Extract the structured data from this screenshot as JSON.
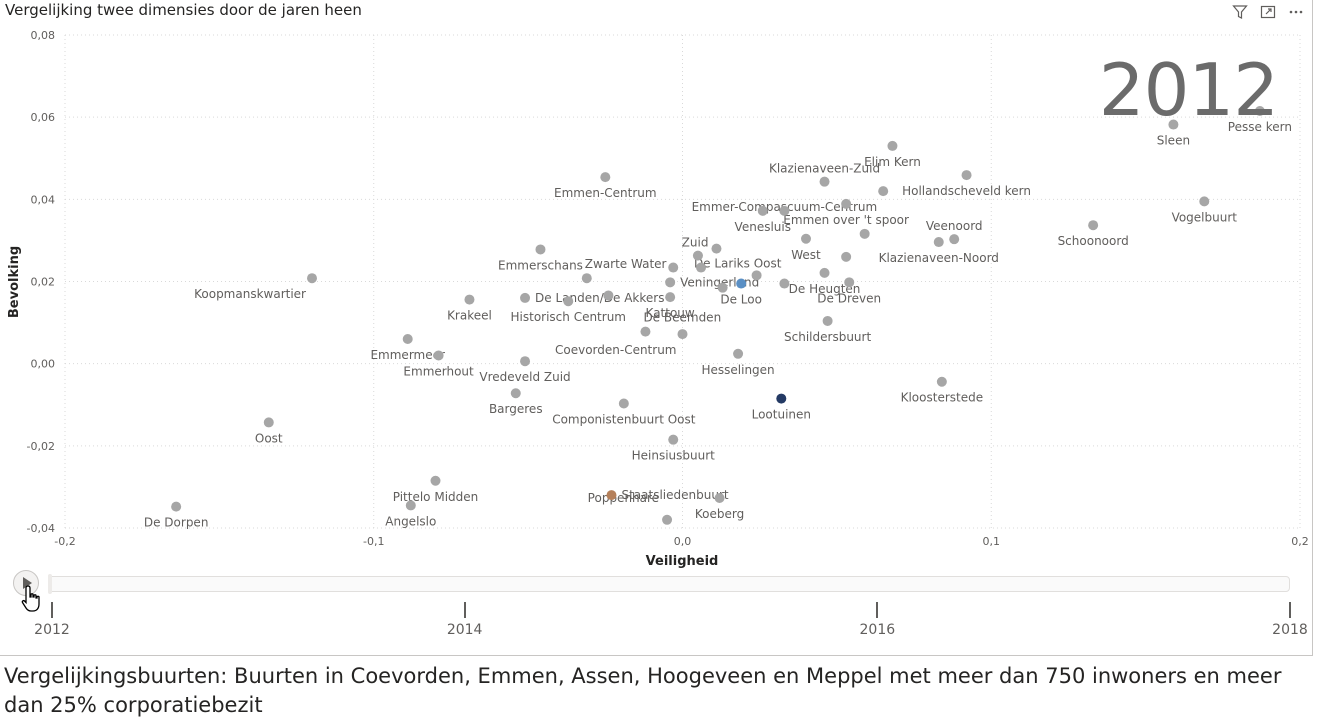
{
  "visual": {
    "title": "Vergelijking twee dimensies door de jaren heen",
    "header_icons": [
      "filter-icon",
      "focus-mode-icon",
      "more-options-icon"
    ],
    "big_year": "2012"
  },
  "chart_data": {
    "type": "scatter",
    "title": "Vergelijking twee dimensies door de jaren heen",
    "xlabel": "Veiligheid",
    "ylabel": "Bevolking",
    "xlim": [
      -0.2,
      0.2
    ],
    "ylim": [
      -0.04,
      0.08
    ],
    "x_ticks": [
      "-0,2",
      "-0,1",
      "0,0",
      "0,1",
      "0,2"
    ],
    "y_ticks": [
      "0,08",
      "0,06",
      "0,04",
      "0,02",
      "0,00",
      "-0,02",
      "-0,04"
    ],
    "x_tick_values": [
      -0.2,
      -0.1,
      0.0,
      0.1,
      0.2
    ],
    "y_tick_values": [
      0.08,
      0.06,
      0.04,
      0.02,
      0.0,
      -0.02,
      -0.04
    ],
    "grid": true,
    "colors": {
      "default": "#a6a6a6",
      "highlight_blue": "#5a8fc4",
      "highlight_navy": "#243a64",
      "highlight_orange": "#b5805a"
    },
    "points": [
      {
        "label": "Pesse kern",
        "x": 0.187,
        "y": 0.0615,
        "color": "default",
        "lpos": "below"
      },
      {
        "label": "Sleen",
        "x": 0.159,
        "y": 0.0582,
        "color": "default",
        "lpos": "below"
      },
      {
        "label": "Elim Kern",
        "x": 0.068,
        "y": 0.053,
        "color": "default",
        "lpos": "below"
      },
      {
        "label": "Hollandscheveld kern",
        "x": 0.092,
        "y": 0.0459,
        "color": "default",
        "lpos": "below"
      },
      {
        "label": "Klazienaveen-Zuid",
        "x": 0.046,
        "y": 0.0443,
        "color": "default",
        "lpos": "above"
      },
      {
        "label": "Emmer-Compascuum-Centrum",
        "x": 0.065,
        "y": 0.042,
        "color": "default",
        "lpos": "below-left"
      },
      {
        "label": "Emmen-Centrum",
        "x": -0.025,
        "y": 0.0454,
        "color": "default",
        "lpos": "below"
      },
      {
        "label": "Vogelbuurt",
        "x": 0.169,
        "y": 0.0395,
        "color": "default",
        "lpos": "below"
      },
      {
        "label": "Venesluis",
        "x": 0.026,
        "y": 0.0372,
        "color": "default",
        "lpos": "below"
      },
      {
        "label": "Emmen over 't spoor",
        "x": 0.053,
        "y": 0.0389,
        "color": "default",
        "lpos": "below"
      },
      {
        "label": "",
        "x": 0.033,
        "y": 0.0372,
        "color": "default",
        "lpos": "none"
      },
      {
        "label": "Schoonoord",
        "x": 0.133,
        "y": 0.0337,
        "color": "default",
        "lpos": "below"
      },
      {
        "label": "Veenoord",
        "x": 0.088,
        "y": 0.0303,
        "color": "default",
        "lpos": "above"
      },
      {
        "label": "Klazienaveen-Noord",
        "x": 0.083,
        "y": 0.0296,
        "color": "default",
        "lpos": "below"
      },
      {
        "label": "",
        "x": 0.059,
        "y": 0.0316,
        "color": "default",
        "lpos": "none"
      },
      {
        "label": "Zuid",
        "x": 0.011,
        "y": 0.028,
        "color": "default",
        "lpos": "left"
      },
      {
        "label": "West",
        "x": 0.04,
        "y": 0.0304,
        "color": "default",
        "lpos": "below"
      },
      {
        "label": "Emmerschans",
        "x": -0.046,
        "y": 0.0278,
        "color": "default",
        "lpos": "below"
      },
      {
        "label": "De Lariks Oost",
        "x": 0.005,
        "y": 0.0263,
        "color": "default",
        "lpos": "below-right"
      },
      {
        "label": "",
        "x": 0.053,
        "y": 0.026,
        "color": "default",
        "lpos": "none"
      },
      {
        "label": "Zwarte Water",
        "x": -0.031,
        "y": 0.0208,
        "color": "default",
        "lpos": "above-right"
      },
      {
        "label": "",
        "x": -0.003,
        "y": 0.0234,
        "color": "default",
        "lpos": "none"
      },
      {
        "label": "",
        "x": 0.006,
        "y": 0.0234,
        "color": "default",
        "lpos": "none"
      },
      {
        "label": "De Heugten",
        "x": 0.046,
        "y": 0.0221,
        "color": "default",
        "lpos": "below"
      },
      {
        "label": "",
        "x": 0.024,
        "y": 0.0215,
        "color": "default",
        "lpos": "none"
      },
      {
        "label": "Koopmanskwartier",
        "x": -0.12,
        "y": 0.0208,
        "color": "default",
        "lpos": "below-left"
      },
      {
        "label": "Veningerland",
        "x": -0.004,
        "y": 0.0198,
        "color": "default",
        "lpos": "right"
      },
      {
        "label": "De Loo",
        "x": 0.019,
        "y": 0.0195,
        "color": "highlight_blue",
        "lpos": "below"
      },
      {
        "label": "",
        "x": 0.013,
        "y": 0.0185,
        "color": "default",
        "lpos": "none"
      },
      {
        "label": "",
        "x": 0.033,
        "y": 0.0195,
        "color": "default",
        "lpos": "none"
      },
      {
        "label": "De Dreven",
        "x": 0.054,
        "y": 0.0198,
        "color": "default",
        "lpos": "below"
      },
      {
        "label": "De Landen/De Akkers",
        "x": -0.051,
        "y": 0.016,
        "color": "default",
        "lpos": "right"
      },
      {
        "label": "",
        "x": -0.024,
        "y": 0.0166,
        "color": "default",
        "lpos": "none"
      },
      {
        "label": "Krakeel",
        "x": -0.069,
        "y": 0.0156,
        "color": "default",
        "lpos": "below"
      },
      {
        "label": "Historisch Centrum",
        "x": -0.037,
        "y": 0.0152,
        "color": "default",
        "lpos": "below"
      },
      {
        "label": "Kattouw",
        "x": -0.004,
        "y": 0.0162,
        "color": "default",
        "lpos": "below"
      },
      {
        "label": "De Beemden",
        "x": -0.012,
        "y": 0.0078,
        "color": "default",
        "lpos": "above-right"
      },
      {
        "label": "Schildersbuurt",
        "x": 0.047,
        "y": 0.0104,
        "color": "default",
        "lpos": "below"
      },
      {
        "label": "Coevorden-Centrum",
        "x": 0.0,
        "y": 0.0072,
        "color": "default",
        "lpos": "below-left"
      },
      {
        "label": "Emmermeer",
        "x": -0.089,
        "y": 0.006,
        "color": "default",
        "lpos": "below"
      },
      {
        "label": "Emmerhout",
        "x": -0.079,
        "y": 0.002,
        "color": "default",
        "lpos": "below"
      },
      {
        "label": "Hesselingen",
        "x": 0.018,
        "y": 0.0024,
        "color": "default",
        "lpos": "below"
      },
      {
        "label": "Vredeveld Zuid",
        "x": -0.051,
        "y": 0.0006,
        "color": "default",
        "lpos": "below"
      },
      {
        "label": "Kloosterstede",
        "x": 0.084,
        "y": -0.0044,
        "color": "default",
        "lpos": "below"
      },
      {
        "label": "Bargeres",
        "x": -0.054,
        "y": -0.0072,
        "color": "default",
        "lpos": "below"
      },
      {
        "label": "Lootuinen",
        "x": 0.032,
        "y": -0.0085,
        "color": "highlight_navy",
        "lpos": "below"
      },
      {
        "label": "Componistenbuurt Oost",
        "x": -0.019,
        "y": -0.0097,
        "color": "default",
        "lpos": "below"
      },
      {
        "label": "Oost",
        "x": -0.134,
        "y": -0.0143,
        "color": "default",
        "lpos": "below"
      },
      {
        "label": "Heinsiusbuurt",
        "x": -0.003,
        "y": -0.0185,
        "color": "default",
        "lpos": "below"
      },
      {
        "label": "Pittelo Midden",
        "x": -0.08,
        "y": -0.0285,
        "color": "default",
        "lpos": "below"
      },
      {
        "label": "Staatsliedenbuurt",
        "x": -0.023,
        "y": -0.032,
        "color": "highlight_orange",
        "lpos": "right"
      },
      {
        "label": "Koeberg",
        "x": 0.012,
        "y": -0.0327,
        "color": "default",
        "lpos": "below"
      },
      {
        "label": "Poppenhare",
        "x": -0.005,
        "y": -0.038,
        "color": "default",
        "lpos": "above-left"
      },
      {
        "label": "Angelslo",
        "x": -0.088,
        "y": -0.0345,
        "color": "default",
        "lpos": "below"
      },
      {
        "label": "De Dorpen",
        "x": -0.164,
        "y": -0.0348,
        "color": "default",
        "lpos": "below"
      }
    ]
  },
  "play_axis": {
    "play_label": "Afspelen",
    "years": [
      "2012",
      "2014",
      "2016",
      "2018"
    ],
    "year_values": [
      2012,
      2014,
      2016,
      2018
    ],
    "current_year": 2012
  },
  "caption": "Vergelijkingsbuurten: Buurten in Coevorden, Emmen, Assen, Hoogeveen en Meppel met meer dan 750 inwoners en meer dan 25% corporatiebezit"
}
